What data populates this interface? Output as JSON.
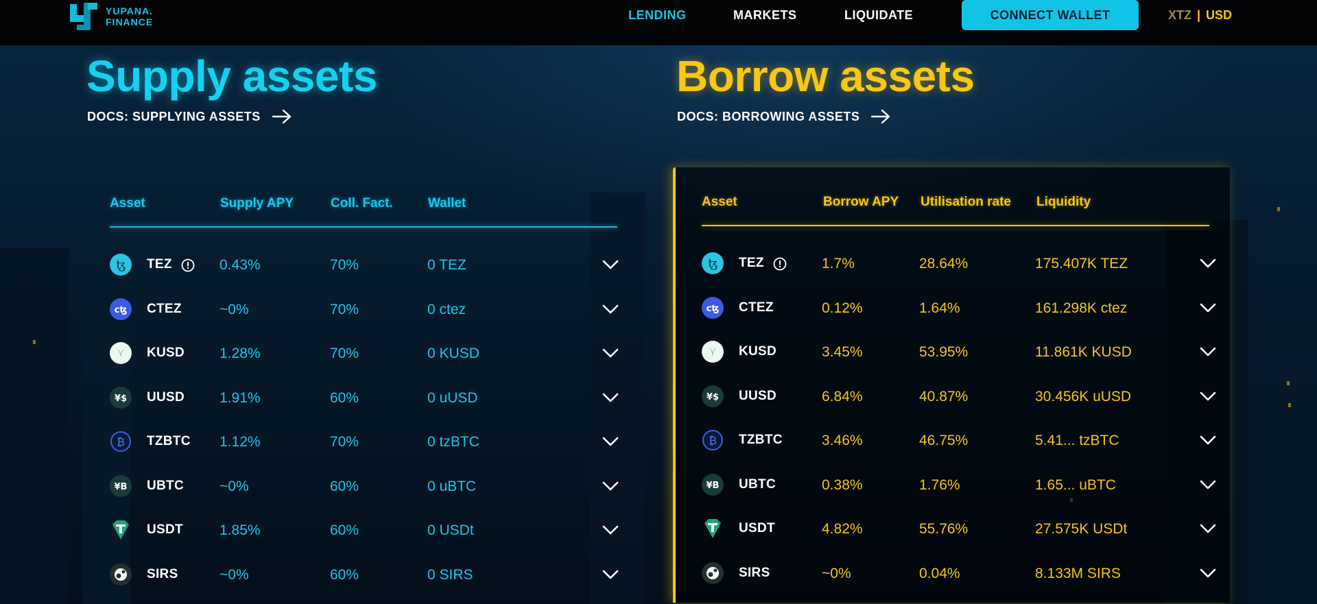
{
  "brand": {
    "line1": "YUPANA.",
    "line2": "FINANCE"
  },
  "nav": {
    "lending": "LENDING",
    "markets": "MARKETS",
    "liquidate": "LIQUIDATE",
    "connect": "CONNECT WALLET"
  },
  "currency": {
    "xtz": "XTZ",
    "separator": "|",
    "usd": "USD",
    "selected": "USD"
  },
  "supply": {
    "title": "Supply assets",
    "docs": "DOCS: SUPPLYING ASSETS",
    "headers": {
      "asset": "Asset",
      "apy": "Supply APY",
      "coll": "Coll. Fact.",
      "wallet": "Wallet"
    },
    "rows": [
      {
        "asset": "TEZ",
        "apy": "0.43%",
        "coll": "70%",
        "wallet": "0 TEZ",
        "icon": "tez-icon"
      },
      {
        "asset": "CTEZ",
        "apy": "~0%",
        "coll": "70%",
        "wallet": "0 ctez",
        "icon": "ctez-icon"
      },
      {
        "asset": "KUSD",
        "apy": "1.28%",
        "coll": "70%",
        "wallet": "0 KUSD",
        "icon": "kusd-icon"
      },
      {
        "asset": "UUSD",
        "apy": "1.91%",
        "coll": "60%",
        "wallet": "0 uUSD",
        "icon": "uusd-icon"
      },
      {
        "asset": "TZBTC",
        "apy": "1.12%",
        "coll": "70%",
        "wallet": "0 tzBTC",
        "icon": "tzbtc-icon"
      },
      {
        "asset": "UBTC",
        "apy": "~0%",
        "coll": "60%",
        "wallet": "0 uBTC",
        "icon": "ubtc-icon"
      },
      {
        "asset": "USDT",
        "apy": "1.85%",
        "coll": "60%",
        "wallet": "0 USDt",
        "icon": "usdt-icon"
      },
      {
        "asset": "SIRS",
        "apy": "~0%",
        "coll": "60%",
        "wallet": "0 SIRS",
        "icon": "sirs-icon"
      }
    ]
  },
  "borrow": {
    "title": "Borrow assets",
    "docs": "DOCS: BORROWING ASSETS",
    "headers": {
      "asset": "Asset",
      "apy": "Borrow APY",
      "util": "Utilisation rate",
      "liquidity": "Liquidity"
    },
    "rows": [
      {
        "asset": "TEZ",
        "apy": "1.7%",
        "util": "28.64%",
        "liquidity": "175.407K TEZ",
        "icon": "tez-icon"
      },
      {
        "asset": "CTEZ",
        "apy": "0.12%",
        "util": "1.64%",
        "liquidity": "161.298K ctez",
        "icon": "ctez-icon"
      },
      {
        "asset": "KUSD",
        "apy": "3.45%",
        "util": "53.95%",
        "liquidity": "11.861K KUSD",
        "icon": "kusd-icon"
      },
      {
        "asset": "UUSD",
        "apy": "6.84%",
        "util": "40.87%",
        "liquidity": "30.456K uUSD",
        "icon": "uusd-icon"
      },
      {
        "asset": "TZBTC",
        "apy": "3.46%",
        "util": "46.75%",
        "liquidity": "5.41... tzBTC",
        "icon": "tzbtc-icon"
      },
      {
        "asset": "UBTC",
        "apy": "0.38%",
        "util": "1.76%",
        "liquidity": "1.65... uBTC",
        "icon": "ubtc-icon"
      },
      {
        "asset": "USDT",
        "apy": "4.82%",
        "util": "55.76%",
        "liquidity": "27.575K USDt",
        "icon": "usdt-icon"
      },
      {
        "asset": "SIRS",
        "apy": "~0%",
        "util": "0.04%",
        "liquidity": "8.133M SIRS",
        "icon": "sirs-icon"
      }
    ]
  },
  "colors": {
    "cyan": "#17c8ec",
    "yellow": "#f6c515",
    "background": "#06192b"
  }
}
